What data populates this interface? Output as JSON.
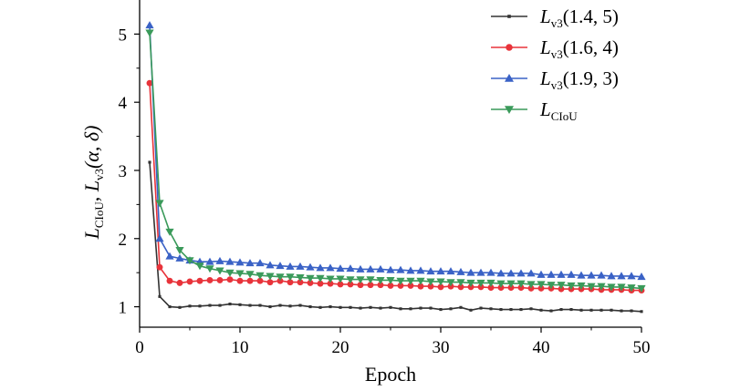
{
  "chart_data": {
    "type": "line",
    "xlabel": "Epoch",
    "ylabel": {
      "main_a": "L",
      "sub_a": "CIoU",
      "sep": ", ",
      "main_b": "L",
      "sub_b": "v3",
      "args": "(α, δ)"
    },
    "xlim": [
      0,
      50
    ],
    "ylim": [
      0.7,
      5.5
    ],
    "xticks": [
      0,
      10,
      20,
      30,
      40,
      50
    ],
    "yticks": [
      1,
      2,
      3,
      4,
      5
    ],
    "legend_position": "top-right",
    "series": [
      {
        "name": "L_v3(1.4, 5)",
        "legend_main": "L",
        "legend_sub": "v3",
        "legend_args": "(1.4, 5)",
        "color": "#333333",
        "marker": "square",
        "x": [
          1,
          2,
          3,
          4,
          5,
          6,
          7,
          8,
          9,
          10,
          11,
          12,
          13,
          14,
          15,
          16,
          17,
          18,
          19,
          20,
          21,
          22,
          23,
          24,
          25,
          26,
          27,
          28,
          29,
          30,
          31,
          32,
          33,
          34,
          35,
          36,
          37,
          38,
          39,
          40,
          41,
          42,
          43,
          44,
          45,
          46,
          47,
          48,
          49,
          50
        ],
        "values": [
          3.12,
          1.15,
          1.0,
          0.99,
          1.01,
          1.01,
          1.02,
          1.02,
          1.04,
          1.03,
          1.02,
          1.02,
          1.0,
          1.02,
          1.01,
          1.02,
          1.0,
          0.99,
          1.0,
          0.99,
          0.99,
          0.98,
          0.99,
          0.98,
          0.99,
          0.97,
          0.97,
          0.98,
          0.98,
          0.96,
          0.97,
          0.99,
          0.95,
          0.98,
          0.97,
          0.96,
          0.96,
          0.96,
          0.97,
          0.95,
          0.94,
          0.96,
          0.96,
          0.95,
          0.95,
          0.95,
          0.95,
          0.94,
          0.94,
          0.93
        ]
      },
      {
        "name": "L_v3(1.6, 4)",
        "legend_main": "L",
        "legend_sub": "v3",
        "legend_args": "(1.6, 4)",
        "color": "#e8333a",
        "marker": "circle",
        "x": [
          1,
          2,
          3,
          4,
          5,
          6,
          7,
          8,
          9,
          10,
          11,
          12,
          13,
          14,
          15,
          16,
          17,
          18,
          19,
          20,
          21,
          22,
          23,
          24,
          25,
          26,
          27,
          28,
          29,
          30,
          31,
          32,
          33,
          34,
          35,
          36,
          37,
          38,
          39,
          40,
          41,
          42,
          43,
          44,
          45,
          46,
          47,
          48,
          49,
          50
        ],
        "values": [
          4.28,
          1.58,
          1.38,
          1.35,
          1.37,
          1.38,
          1.39,
          1.39,
          1.4,
          1.38,
          1.38,
          1.38,
          1.36,
          1.38,
          1.36,
          1.36,
          1.35,
          1.34,
          1.34,
          1.33,
          1.33,
          1.32,
          1.32,
          1.32,
          1.31,
          1.31,
          1.31,
          1.3,
          1.3,
          1.29,
          1.3,
          1.29,
          1.29,
          1.29,
          1.28,
          1.28,
          1.28,
          1.28,
          1.27,
          1.27,
          1.27,
          1.26,
          1.26,
          1.26,
          1.26,
          1.25,
          1.25,
          1.25,
          1.24,
          1.24
        ]
      },
      {
        "name": "L_v3(1.9, 3)",
        "legend_main": "L",
        "legend_sub": "v3",
        "legend_args": "(1.9, 3)",
        "color": "#3a62c6",
        "marker": "triangle-up",
        "x": [
          1,
          2,
          3,
          4,
          5,
          6,
          7,
          8,
          9,
          10,
          11,
          12,
          13,
          14,
          15,
          16,
          17,
          18,
          19,
          20,
          21,
          22,
          23,
          24,
          25,
          26,
          27,
          28,
          29,
          30,
          31,
          32,
          33,
          34,
          35,
          36,
          37,
          38,
          39,
          40,
          41,
          42,
          43,
          44,
          45,
          46,
          47,
          48,
          49,
          50
        ],
        "values": [
          5.13,
          2.0,
          1.74,
          1.71,
          1.68,
          1.66,
          1.66,
          1.67,
          1.66,
          1.65,
          1.64,
          1.64,
          1.61,
          1.6,
          1.59,
          1.59,
          1.58,
          1.57,
          1.57,
          1.56,
          1.56,
          1.55,
          1.55,
          1.55,
          1.54,
          1.54,
          1.53,
          1.53,
          1.52,
          1.52,
          1.52,
          1.51,
          1.5,
          1.5,
          1.5,
          1.49,
          1.49,
          1.49,
          1.49,
          1.47,
          1.47,
          1.47,
          1.47,
          1.46,
          1.46,
          1.46,
          1.45,
          1.45,
          1.45,
          1.44
        ]
      },
      {
        "name": "L_CIoU",
        "legend_main": "L",
        "legend_sub": "CIoU",
        "legend_args": "",
        "color": "#3a9a5a",
        "marker": "triangle-down",
        "x": [
          1,
          2,
          3,
          4,
          5,
          6,
          7,
          8,
          9,
          10,
          11,
          12,
          13,
          14,
          15,
          16,
          17,
          18,
          19,
          20,
          21,
          22,
          23,
          24,
          25,
          26,
          27,
          28,
          29,
          30,
          31,
          32,
          33,
          34,
          35,
          36,
          37,
          38,
          39,
          40,
          41,
          42,
          43,
          44,
          45,
          46,
          47,
          48,
          49,
          50
        ],
        "values": [
          5.02,
          2.52,
          2.1,
          1.83,
          1.68,
          1.6,
          1.56,
          1.53,
          1.5,
          1.49,
          1.48,
          1.46,
          1.45,
          1.44,
          1.44,
          1.43,
          1.42,
          1.42,
          1.41,
          1.41,
          1.4,
          1.4,
          1.4,
          1.39,
          1.39,
          1.38,
          1.38,
          1.38,
          1.37,
          1.37,
          1.36,
          1.36,
          1.35,
          1.35,
          1.35,
          1.34,
          1.34,
          1.34,
          1.33,
          1.33,
          1.32,
          1.32,
          1.31,
          1.31,
          1.3,
          1.3,
          1.29,
          1.29,
          1.28,
          1.27
        ]
      }
    ]
  }
}
